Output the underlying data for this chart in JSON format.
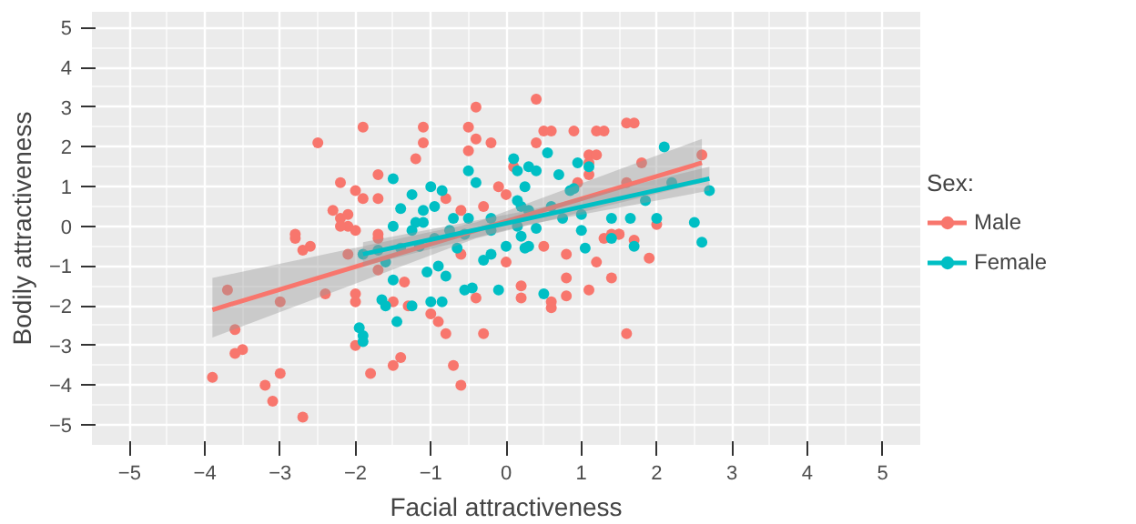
{
  "chart_data": {
    "type": "scatter",
    "xlabel": "Facial attractiveness",
    "ylabel": "Bodily attractiveness",
    "legend_title": "Sex:",
    "xlim": [
      -5.5,
      5.5
    ],
    "ylim": [
      -5.5,
      5.4
    ],
    "xticks": [
      -5,
      -4,
      -3,
      -2,
      -1,
      0,
      1,
      2,
      3,
      4,
      5
    ],
    "yticks": [
      -5,
      -4,
      -3,
      -2,
      -1,
      0,
      1,
      2,
      3,
      4,
      5
    ],
    "grid": true,
    "legend": "right",
    "marker": "circle",
    "series": [
      {
        "name": "Male",
        "color": "#f8766d",
        "x": [
          -3.7,
          -3.6,
          -3.5,
          -3.6,
          -3.9,
          -3.0,
          -3.0,
          -3.2,
          -3.1,
          -2.7,
          -2.8,
          -2.7,
          -2.6,
          -2.4,
          -2.1,
          -2.0,
          -2.0,
          -2.0,
          -1.8,
          -1.5,
          -1.4,
          -1.7,
          -1.7,
          -1.5,
          -1.35,
          -1.3,
          -1.0,
          -0.9,
          -0.8,
          -0.7,
          -0.6,
          -0.6,
          -0.4,
          -0.3,
          0.0,
          0.2,
          0.2,
          -2.2,
          -2.1,
          -0.4,
          -1.9,
          -2.5,
          -1.1,
          -1.1,
          -1.2,
          -0.5,
          -0.4,
          -0.2,
          -0.5,
          0.4,
          -1.7,
          -2.2,
          -2.0,
          -1.9,
          -1.7,
          -2.3,
          -2.1,
          -2.2,
          -2.0,
          -1.7,
          -2.8,
          -0.8,
          -0.6,
          -0.3,
          -0.1,
          0.5,
          0.6,
          0.9,
          1.2,
          1.3,
          1.6,
          1.7,
          0.4,
          1.1,
          1.2,
          1.1,
          0.1,
          1.1,
          1.8,
          2.6,
          1.6,
          0.95,
          0.0,
          1.4,
          1.5,
          1.3,
          1.5,
          1.7,
          2.0,
          0.5,
          0.8,
          1.2,
          1.9,
          0.8,
          1.4,
          0.6,
          0.6,
          0.8,
          1.1,
          1.6
        ],
        "values": [
          -1.6,
          -2.6,
          -3.1,
          -3.2,
          -3.8,
          -1.9,
          -3.7,
          -4.0,
          -4.4,
          -4.8,
          -0.3,
          -0.6,
          -0.5,
          -1.7,
          -0.7,
          -1.7,
          -1.9,
          -3.0,
          -3.7,
          -3.5,
          -3.3,
          -0.3,
          -1.1,
          -1.9,
          -1.4,
          -2.0,
          -2.2,
          -2.4,
          -2.7,
          -3.5,
          -4.0,
          -0.7,
          -1.8,
          -2.7,
          -0.9,
          -1.5,
          -1.8,
          0.2,
          0.0,
          3.0,
          2.5,
          2.1,
          2.5,
          2.1,
          1.7,
          2.5,
          2.2,
          2.1,
          1.9,
          3.2,
          1.3,
          1.1,
          0.9,
          0.7,
          0.7,
          0.4,
          0.3,
          0.0,
          -0.1,
          -0.2,
          -0.2,
          0.7,
          0.4,
          0.5,
          1.0,
          2.4,
          2.4,
          2.4,
          2.4,
          2.4,
          2.6,
          2.6,
          2.1,
          1.8,
          1.8,
          1.6,
          1.5,
          1.3,
          1.6,
          1.8,
          1.1,
          1.1,
          0.8,
          -0.2,
          -0.2,
          -0.3,
          -0.2,
          -0.35,
          0.05,
          -0.5,
          -0.7,
          -0.9,
          -0.8,
          -1.3,
          -1.3,
          -1.9,
          -2.05,
          -1.75,
          -1.6,
          -2.7
        ]
      },
      {
        "name": "Female",
        "color": "#00bfc4",
        "x": [
          -1.5,
          -1.0,
          -0.85,
          -0.5,
          0.1,
          0.4,
          0.15,
          -0.4,
          -1.25,
          -1.1,
          -1.4,
          -0.95,
          -0.7,
          -1.2,
          -1.5,
          -0.75,
          -0.2,
          0.2,
          0.25,
          0.3,
          0.55,
          0.7,
          0.95,
          1.1,
          0.9,
          0.85,
          2.1,
          2.2,
          2.7,
          1.85,
          0.15,
          0.3,
          0.6,
          1.0,
          1.4,
          1.65,
          2.0,
          2.5,
          0.75,
          1.0,
          0.4,
          2.6,
          1.4,
          1.7,
          1.05,
          0.3,
          0.2,
          0.5,
          -1.65,
          -1.6,
          -1.45,
          -1.95,
          -1.9,
          -1.9,
          -1.25,
          -1.0,
          -0.85,
          -0.55,
          -1.05,
          -0.8,
          -0.45,
          -0.1,
          -1.5,
          -1.6,
          -1.9,
          -1.7,
          -1.4,
          -1.15,
          -0.9,
          -0.65,
          -0.3,
          -0.2,
          0.0,
          0.25,
          -1.25,
          -0.95,
          -0.55,
          -0.2,
          0.15,
          -1.1,
          -0.5
        ],
        "values": [
          1.2,
          1.0,
          0.9,
          1.4,
          1.7,
          1.4,
          1.4,
          1.1,
          0.8,
          0.4,
          0.45,
          0.5,
          0.2,
          0.1,
          0.0,
          -0.1,
          0.2,
          0.5,
          1.0,
          1.5,
          1.85,
          1.3,
          1.6,
          1.5,
          0.95,
          0.9,
          2.0,
          1.1,
          0.9,
          0.65,
          0.65,
          0.4,
          0.5,
          0.3,
          0.2,
          0.2,
          0.2,
          0.1,
          0.2,
          -0.1,
          -0.05,
          -0.4,
          -0.3,
          -0.5,
          -0.55,
          -0.5,
          -0.25,
          -1.7,
          -1.85,
          -2.0,
          -2.4,
          -2.55,
          -2.75,
          -2.9,
          -2.0,
          -1.9,
          -1.9,
          -1.6,
          -1.15,
          -1.25,
          -1.55,
          -1.6,
          -1.35,
          -0.9,
          -0.7,
          -0.6,
          -0.55,
          -0.5,
          -1.0,
          -0.55,
          -0.85,
          -0.7,
          -0.5,
          -0.55,
          -0.1,
          -0.3,
          -0.2,
          -0.1,
          0.0,
          0.1,
          0.2
        ]
      },
      {
        "type": "line",
        "marker": "none",
        "color": "#f8766d",
        "x": [
          -3.9,
          -0.4,
          2.6
        ],
        "values": [
          -2.1,
          -0.1,
          1.6
        ],
        "lower": [
          -2.8,
          -0.3,
          1.1
        ],
        "upper": [
          -1.3,
          0.1,
          2.2
        ]
      },
      {
        "type": "line",
        "marker": "none",
        "color": "#00bfc4",
        "x": [
          -1.9,
          0.3,
          2.7
        ],
        "values": [
          -0.7,
          0.2,
          1.2
        ],
        "lower": [
          -1.0,
          0.05,
          0.9
        ],
        "upper": [
          -0.4,
          0.4,
          1.5
        ]
      }
    ]
  }
}
